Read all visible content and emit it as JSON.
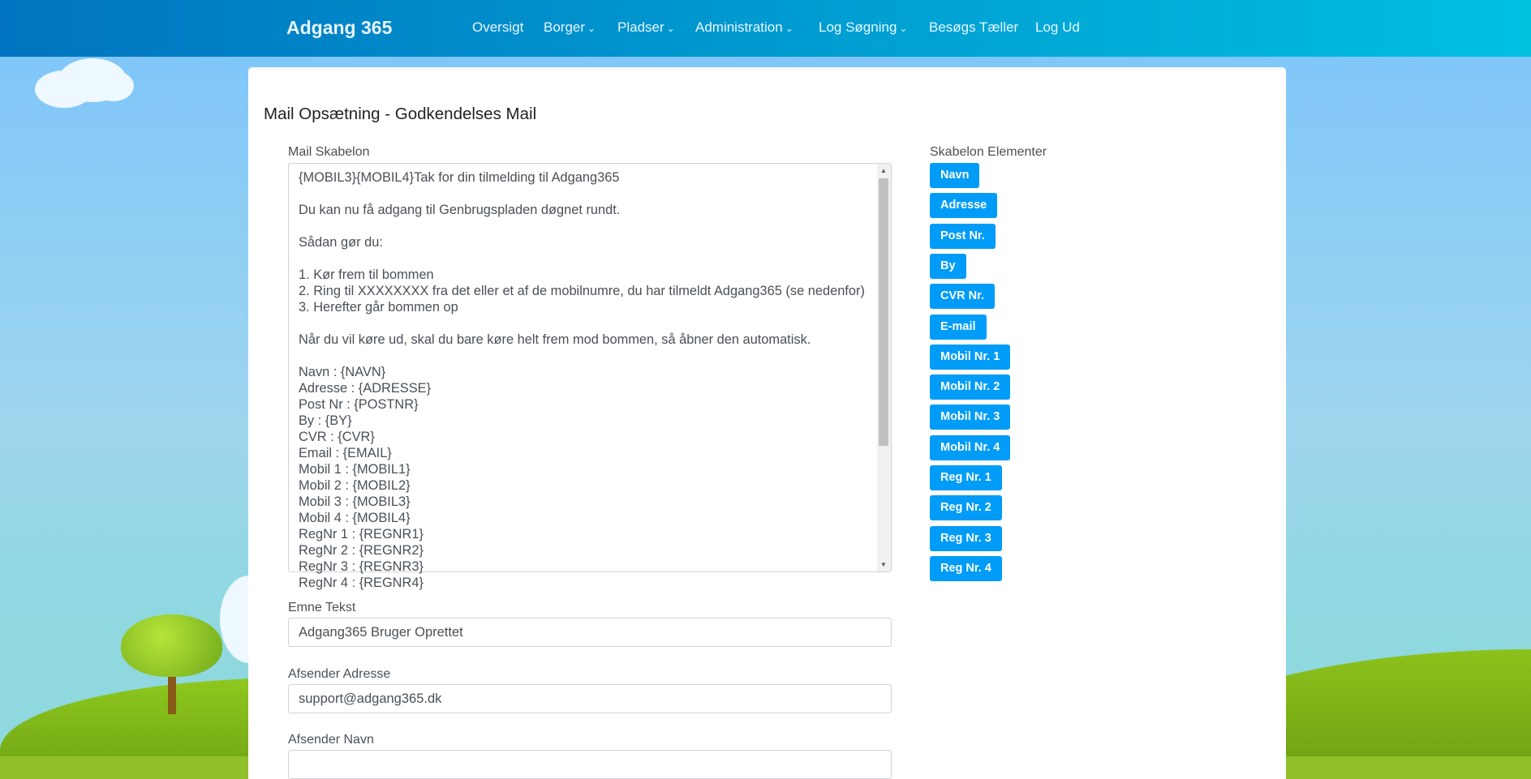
{
  "navbar": {
    "brand": "Adgang 365",
    "items": [
      {
        "label": "Oversigt",
        "dropdown": false
      },
      {
        "label": "Borger",
        "dropdown": true
      },
      {
        "label": "Pladser",
        "dropdown": true
      },
      {
        "label": "Administration",
        "dropdown": true
      },
      {
        "label": "Log Søgning",
        "dropdown": true
      },
      {
        "label": "Besøgs Tæller",
        "dropdown": false
      },
      {
        "label": "Log Ud",
        "dropdown": false
      }
    ]
  },
  "page": {
    "title": "Mail Opsætning - Godkendelses Mail"
  },
  "form": {
    "template_label": "Mail Skabelon",
    "template_value": "{MOBIL3}{MOBIL4}Tak for din tilmelding til Adgang365\n\nDu kan nu få adgang til Genbrugspladen døgnet rundt.\n\nSådan gør du:\n\n1. Kør frem til bommen\n2. Ring til XXXXXXXX fra det eller et af de mobilnumre, du har tilmeldt Adgang365 (se nedenfor)\n3. Herefter går bommen op\n\nNår du vil køre ud, skal du bare køre helt frem mod bommen, så åbner den automatisk.\n\nNavn : {NAVN}\nAdresse : {ADRESSE}\nPost Nr : {POSTNR}\nBy : {BY}\nCVR : {CVR}\nEmail : {EMAIL}\nMobil 1 : {MOBIL1}\nMobil 2 : {MOBIL2}\nMobil 3 : {MOBIL3}\nMobil 4 : {MOBIL4}\nRegNr 1 : {REGNR1}\nRegNr 2 : {REGNR2}\nRegNr 3 : {REGNR3}\nRegNr 4 : {REGNR4}",
    "subject_label": "Emne Tekst",
    "subject_value": "Adgang365 Bruger Oprettet",
    "sender_address_label": "Afsender Adresse",
    "sender_address_value": "support@adgang365.dk",
    "sender_name_label": "Afsender Navn",
    "sender_name_value": ""
  },
  "elements": {
    "label": "Skabelon Elementer",
    "buttons": [
      "Navn",
      "Adresse",
      "Post Nr.",
      "By",
      "CVR Nr.",
      "E-mail",
      "Mobil Nr. 1",
      "Mobil Nr. 2",
      "Mobil Nr. 3",
      "Mobil Nr. 4",
      "Reg Nr. 1",
      "Reg Nr. 2",
      "Reg Nr. 3",
      "Reg Nr. 4"
    ]
  },
  "colors": {
    "button": "#009cf7",
    "nav_start": "#0074c0",
    "nav_end": "#00c0e0"
  }
}
